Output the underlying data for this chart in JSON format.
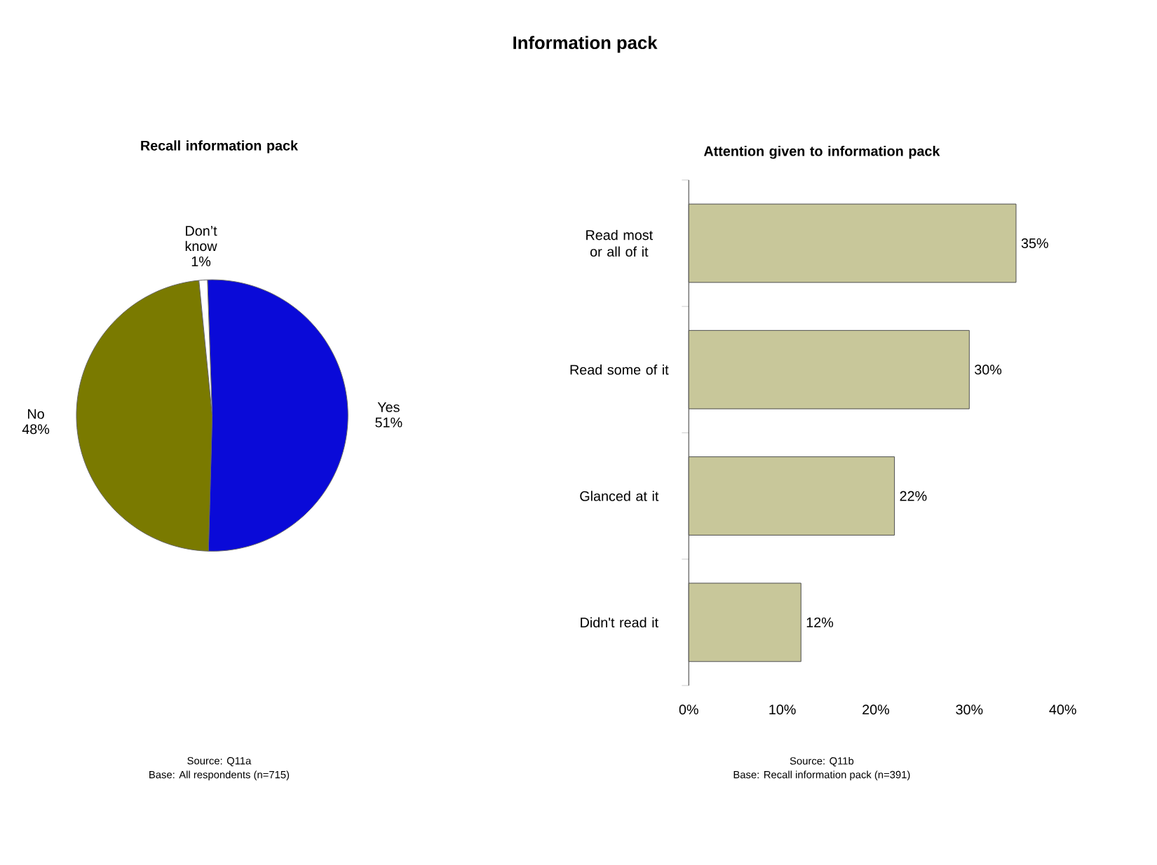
{
  "chart_data": [
    {
      "type": "pie",
      "title": "Recall information pack",
      "categories": [
        "Yes",
        "No",
        "Don’t know"
      ],
      "values": [
        51,
        48,
        1
      ],
      "value_labels": [
        "51%",
        "48%",
        "1%"
      ],
      "colors": [
        "#0a0ad8",
        "#7a7a00",
        "#ffffff"
      ],
      "annotations": [
        "Information pack",
        "Source: Q11a",
        "Base: All respondents (n=715)"
      ]
    },
    {
      "type": "bar",
      "orientation": "horizontal",
      "title": "Attention given to information pack",
      "categories": [
        "Read most or all of it",
        "Read some of it",
        "Glanced at it",
        "Didn't read it"
      ],
      "values": [
        35,
        30,
        22,
        12
      ],
      "value_labels": [
        "35%",
        "30%",
        "22%",
        "12%"
      ],
      "color": "#c8c79a",
      "xlim": [
        0,
        40
      ],
      "xticks": [
        {
          "value": 0,
          "label": "0%"
        },
        {
          "value": 10,
          "label": "10%"
        },
        {
          "value": 20,
          "label": "20%"
        },
        {
          "value": 30,
          "label": "30%"
        },
        {
          "value": 40,
          "label": "40%"
        }
      ],
      "annotations": [
        "Source: Q11b",
        "Base: Recall information pack (n=391)"
      ]
    }
  ]
}
